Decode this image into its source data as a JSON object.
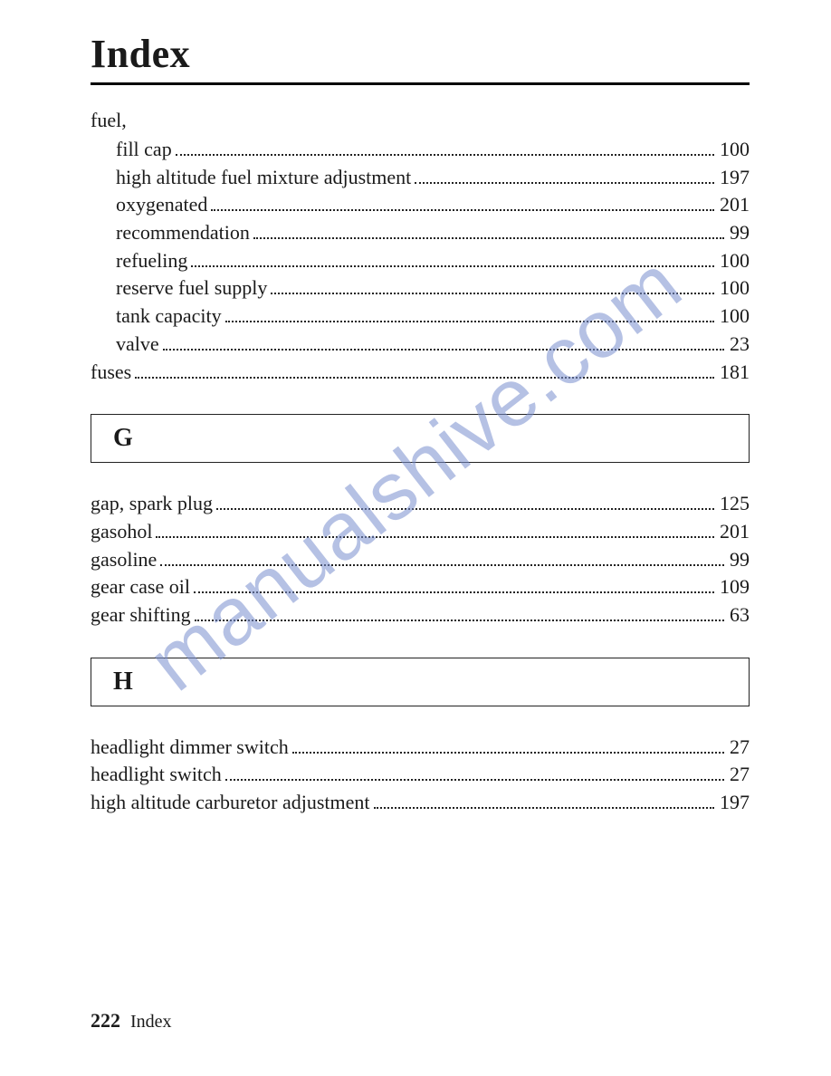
{
  "title": "Index",
  "watermark": "manualshive.com",
  "footer": {
    "page_number": "222",
    "label": "Index"
  },
  "group_fuel": {
    "header": "fuel,"
  },
  "fuel_sub": {
    "fill_cap": {
      "label": "fill cap",
      "page": "100"
    },
    "hafma": {
      "label": "high altitude fuel mixture adjustment",
      "page": "197"
    },
    "oxy": {
      "label": "oxygenated",
      "page": "201"
    },
    "rec": {
      "label": "recommendation",
      "page": "99"
    },
    "refuel": {
      "label": "refueling",
      "page": "100"
    },
    "reserve": {
      "label": "reserve fuel supply",
      "page": "100"
    },
    "tankcap": {
      "label": "tank capacity",
      "page": "100"
    },
    "valve": {
      "label": "valve",
      "page": "23"
    }
  },
  "fuses": {
    "label": "fuses",
    "page": "181"
  },
  "section_g": {
    "letter": "G"
  },
  "g_entries": {
    "gap": {
      "label": "gap, spark plug",
      "page": "125"
    },
    "gasohol": {
      "label": "gasohol",
      "page": "201"
    },
    "gasoline": {
      "label": "gasoline",
      "page": "99"
    },
    "gearoil": {
      "label": "gear case oil",
      "page": "109"
    },
    "gearshift": {
      "label": "gear shifting",
      "page": "63"
    }
  },
  "section_h": {
    "letter": "H"
  },
  "h_entries": {
    "dimmer": {
      "label": "headlight dimmer switch",
      "page": "27"
    },
    "hswitch": {
      "label": "headlight switch",
      "page": "27"
    },
    "hacarb": {
      "label": "high altitude carburetor adjustment",
      "page": "197"
    }
  }
}
